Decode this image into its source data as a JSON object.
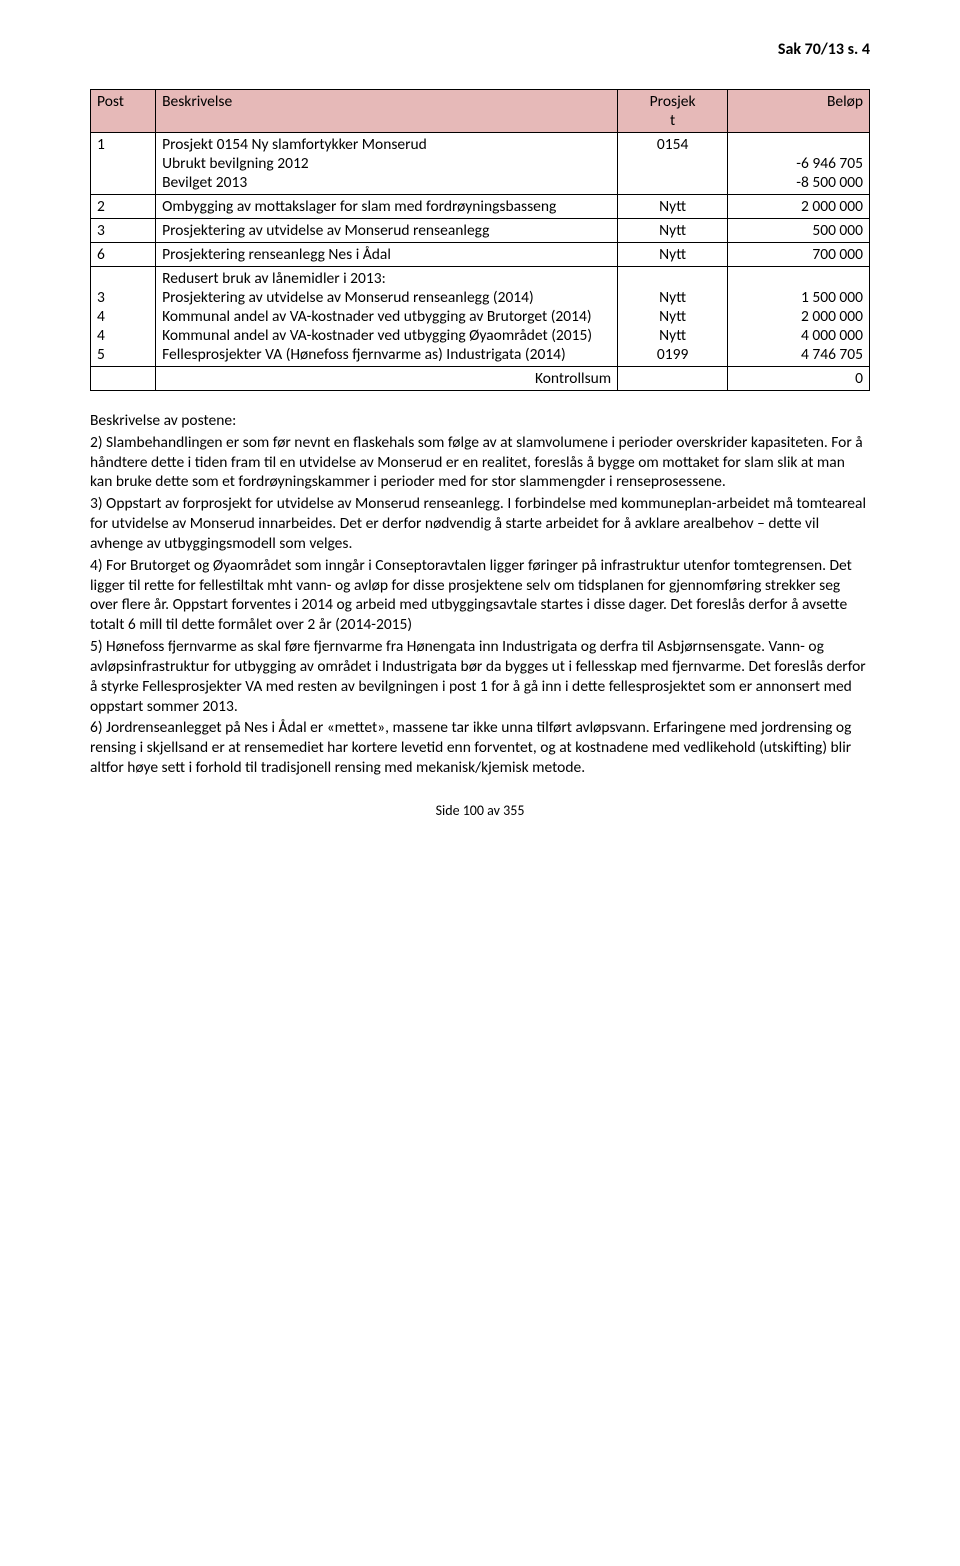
{
  "header": {
    "text": "Sak 70/13 s. 4"
  },
  "table": {
    "header_bg": "#e6b9b8",
    "border_color": "#000000",
    "columns": [
      "Post",
      "Beskrivelse",
      "Prosjek\nt",
      "Beløp"
    ],
    "rows": [
      {
        "post": "1",
        "desc": "Prosjekt 0154 Ny slamfortykker Monserud\nUbrukt bevilgning 2012\nBevilget 2013",
        "proj": "0154",
        "amt": "\n-6 946 705\n-8 500 000"
      },
      {
        "post": "2",
        "desc": "Ombygging av mottakslager for slam med fordrøyningsbasseng",
        "proj": "Nytt",
        "amt": "2 000 000"
      },
      {
        "post": "3",
        "desc": "Prosjektering av utvidelse av Monserud renseanlegg",
        "proj": "Nytt",
        "amt": "500 000"
      },
      {
        "post": "6",
        "desc": "Prosjektering renseanlegg Nes i Ådal",
        "proj": "Nytt",
        "amt": "700 000"
      },
      {
        "post": "\n3\n4\n4\n5",
        "desc": "Redusert bruk av lånemidler i 2013:\nProsjektering av utvidelse av Monserud renseanlegg (2014)\nKommunal andel av VA-kostnader ved utbygging av Brutorget (2014)\nKommunal andel av VA-kostnader ved utbygging Øyaområdet (2015)\nFellesprosjekter VA (Hønefoss fjernvarme as) Industrigata (2014)",
        "proj": "\nNytt\nNytt\nNytt\n0199",
        "amt": "\n1 500 000\n2 000 000\n4 000 000\n4 746 705"
      },
      {
        "post": "",
        "desc_right": "Kontrollsum",
        "proj": "",
        "amt": "0"
      }
    ]
  },
  "body": {
    "intro": "Beskrivelse av postene:",
    "p2": "2) Slambehandlingen er som før nevnt en flaskehals som følge av at slamvolumene i perioder overskrider kapasiteten. For å håndtere dette i tiden fram til en utvidelse av Monserud er en realitet, foreslås å bygge om mottaket for slam slik at man kan bruke dette som et fordrøyningskammer i perioder med for stor slammengder i renseprosessene.",
    "p3": "3) Oppstart av forprosjekt for utvidelse av Monserud renseanlegg. I forbindelse med kommuneplan-arbeidet må tomteareal for utvidelse av Monserud innarbeides. Det er derfor nødvendig å starte arbeidet for å avklare arealbehov – dette vil avhenge av utbyggingsmodell som velges.",
    "p4": "4) For Brutorget og Øyaområdet som inngår i Conseptoravtalen ligger føringer på infrastruktur utenfor tomtegrensen. Det ligger til rette for fellestiltak mht vann- og avløp for disse prosjektene selv om tidsplanen for gjennomføring strekker seg over flere år. Oppstart forventes i 2014 og arbeid med utbyggingsavtale startes i disse dager. Det foreslås derfor å avsette totalt  6 mill til dette formålet over 2 år (2014-2015)",
    "p5": "5) Hønefoss fjernvarme as skal føre fjernvarme fra Hønengata inn Industrigata og derfra til Asbjørnsensgate. Vann- og avløpsinfrastruktur for utbygging av området i Industrigata bør da bygges ut i fellesskap med fjernvarme. Det foreslås derfor å styrke Fellesprosjekter VA med resten av bevilgningen i post 1 for å gå inn i dette fellesprosjektet som er annonsert med oppstart sommer 2013.",
    "p6": "6) Jordrenseanlegget på Nes i Ådal er «mettet», massene tar ikke unna tilført avløpsvann. Erfaringene med jordrensing og rensing i skjellsand er at rensemediet har kortere levetid enn forventet, og at kostnadene med vedlikehold (utskifting) blir altfor høye sett i forhold til tradisjonell rensing med mekanisk/kjemisk metode."
  },
  "footer": {
    "text": "Side 100 av 355"
  }
}
